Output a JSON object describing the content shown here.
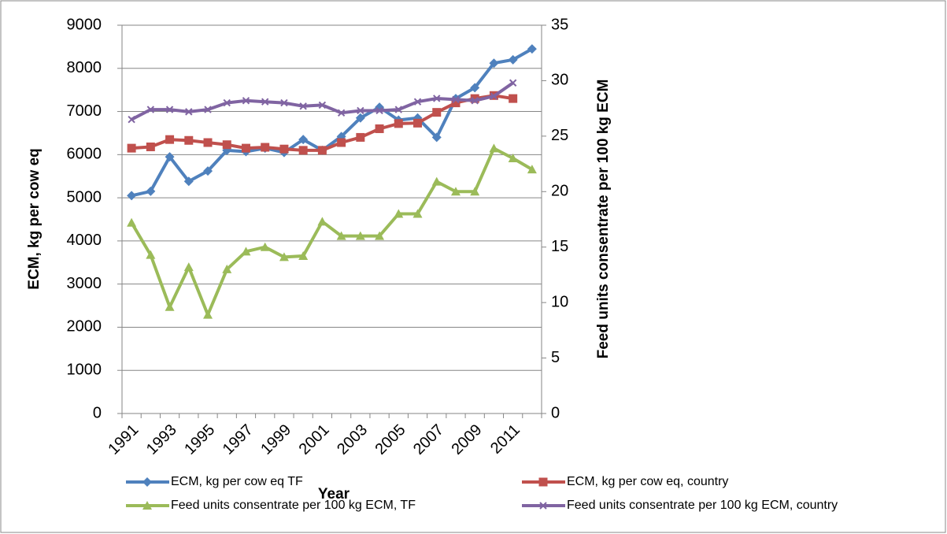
{
  "chart_data": {
    "type": "line",
    "categories": [
      "1991",
      null,
      "1993",
      null,
      "1995",
      null,
      "1997",
      null,
      "1999",
      null,
      "2001",
      null,
      "2003",
      null,
      "2005",
      null,
      "2007",
      null,
      "2009",
      null,
      "2011",
      null
    ],
    "x_label": "Year",
    "y_label": "ECM, kg per cow eq",
    "y2_label": "Feed units consentrate per 100 kg ECM",
    "ylim": [
      0,
      9000
    ],
    "yticks": [
      0,
      1000,
      2000,
      3000,
      4000,
      5000,
      6000,
      7000,
      8000,
      9000
    ],
    "y2lim": [
      0,
      35
    ],
    "y2ticks": [
      0,
      5,
      10,
      15,
      20,
      25,
      30,
      35
    ],
    "grid": true,
    "series": [
      {
        "name": "ECM, kg per  cow eq TF",
        "color": "#4F81BD",
        "marker": "diamond",
        "values": [
          5050,
          5150,
          5950,
          5380,
          5620,
          6100,
          6070,
          6150,
          6050,
          6350,
          6100,
          6420,
          6850,
          7100,
          6800,
          6850,
          6400,
          7300,
          7550,
          8120,
          8200,
          8450
        ]
      },
      {
        "name": "ECM, kg per  cow eq, country",
        "color": "#C0504D",
        "marker": "square",
        "values": [
          6150,
          6180,
          6350,
          6330,
          6280,
          6230,
          6150,
          6170,
          6130,
          6100,
          6100,
          6280,
          6400,
          6600,
          6720,
          6730,
          6980,
          7200,
          7300,
          7370,
          7300,
          null
        ]
      },
      {
        "name": "Feed units consentrate per 100 kg ECM, TF",
        "color": "#9BBB59",
        "marker": "triangle",
        "axis": "y2",
        "values": [
          17.2,
          14.3,
          9.6,
          13.2,
          8.9,
          13.0,
          14.6,
          15.0,
          14.1,
          14.2,
          17.3,
          16.0,
          16.0,
          16.0,
          18.0,
          18.0,
          20.9,
          20.0,
          20.0,
          23.9,
          23.0,
          22.0
        ]
      },
      {
        "name": "Feed units consentrate per 100 kg ECM, country",
        "color": "#8064A2",
        "marker": "x",
        "axis": "y2",
        "values": [
          26.5,
          27.4,
          27.4,
          27.2,
          27.4,
          28.0,
          28.2,
          28.1,
          28.0,
          27.7,
          27.8,
          27.1,
          27.3,
          27.3,
          27.4,
          28.1,
          28.4,
          28.3,
          28.2,
          28.6,
          29.8,
          null
        ]
      }
    ]
  }
}
